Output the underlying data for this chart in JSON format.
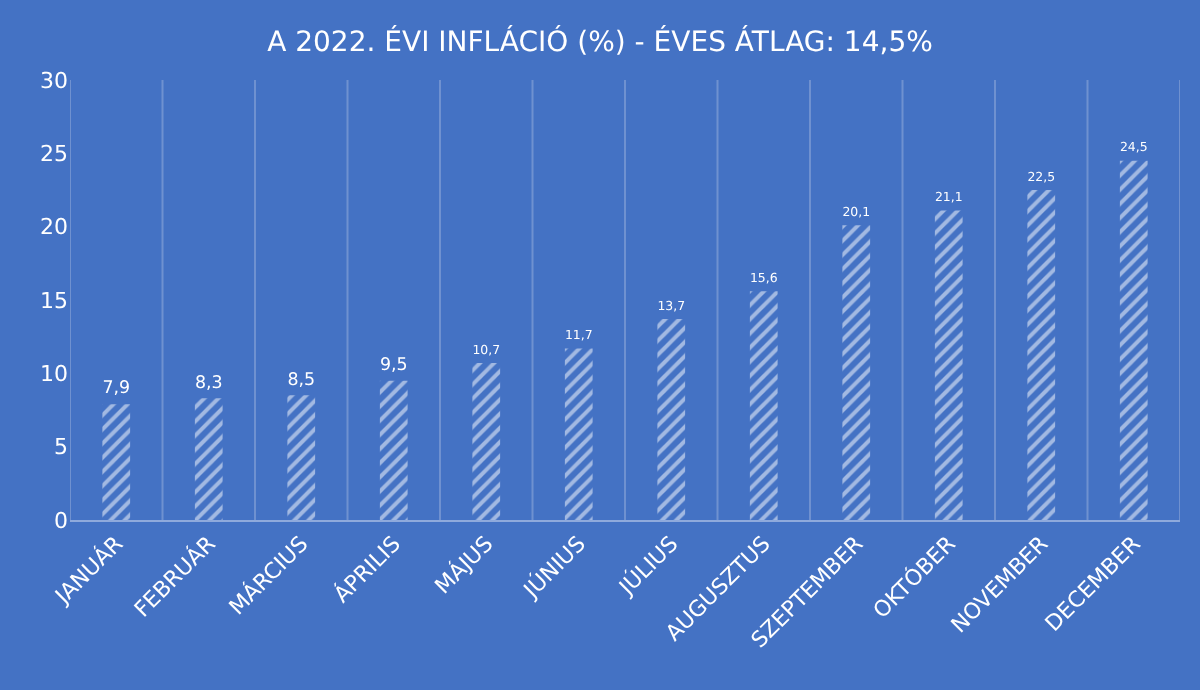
{
  "chart_data": {
    "type": "bar",
    "title": "A 2022. ÉVI INFLÁCIÓ (%) - ÉVES ÁTLAG: 14,5%",
    "categories": [
      "JANUÁR",
      "FEBRUÁR",
      "MÁRCIUS",
      "ÁPRILIS",
      "MÁJUS",
      "JÚNIUS",
      "JÚLIUS",
      "AUGUSZTUS",
      "SZEPTEMBER",
      "OKTÓBER",
      "NOVEMBER",
      "DECEMBER"
    ],
    "values": [
      7.9,
      8.3,
      8.5,
      9.5,
      10.7,
      11.7,
      13.7,
      15.6,
      20.1,
      21.1,
      22.5,
      24.5
    ],
    "value_labels": [
      "7,9",
      "8,3",
      "8,5",
      "9,5",
      "10,7",
      "11,7",
      "13,7",
      "15,6",
      "20,1",
      "21,1",
      "22,5",
      "24,5"
    ],
    "color": "#ffffff",
    "ylim": [
      0,
      30
    ],
    "yticks": [
      0,
      5,
      10,
      15,
      20,
      25,
      30
    ],
    "grid": "x",
    "legend": false
  }
}
